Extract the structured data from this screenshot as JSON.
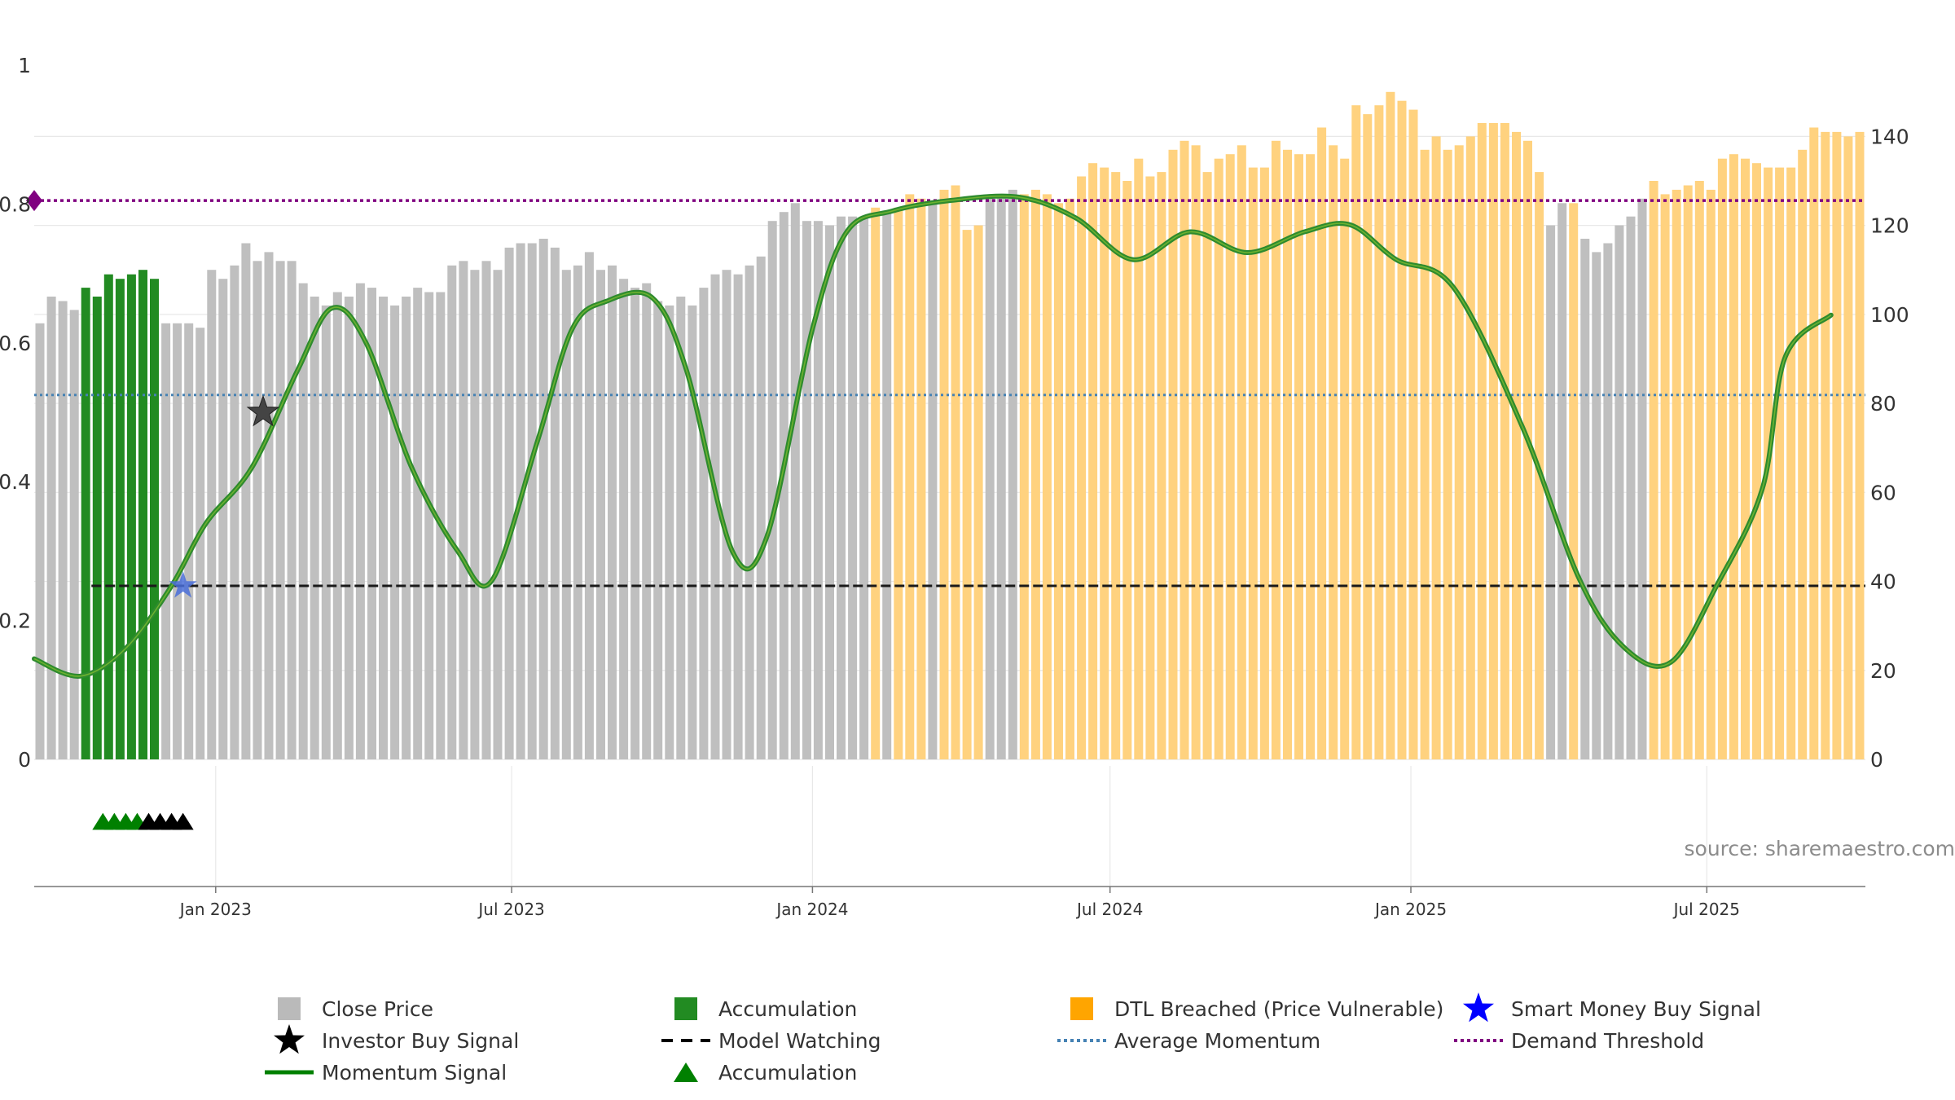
{
  "chart_data": {
    "type": "bar",
    "title": "",
    "source": "source: sharemaestro.com",
    "left_axis": {
      "min": 0,
      "max": 1,
      "ticks": [
        0,
        0.2,
        0.4,
        0.6,
        0.8,
        1
      ],
      "tick_labels": [
        "0",
        "0.2",
        "0.4",
        "0.6",
        "0.8",
        "1"
      ]
    },
    "right_axis": {
      "min": 0,
      "max": 156,
      "ticks": [
        0,
        20,
        40,
        60,
        80,
        100,
        120,
        140
      ],
      "tick_labels": [
        "0",
        "20",
        "40",
        "60",
        "80",
        "100",
        "120",
        "140"
      ]
    },
    "x_axis": {
      "start": "2022-09-12",
      "end": "2025-10-06",
      "ticks": [
        {
          "date": "2023-01-01",
          "label": "Jan 2023"
        },
        {
          "date": "2023-07-01",
          "label": "Jul 2023"
        },
        {
          "date": "2024-01-01",
          "label": "Jan 2024"
        },
        {
          "date": "2024-07-01",
          "label": "Jul 2024"
        },
        {
          "date": "2025-01-01",
          "label": "Jan 2025"
        },
        {
          "date": "2025-07-01",
          "label": "Jul 2025"
        }
      ]
    },
    "bars": {
      "start": "2022-09-12",
      "step_days": 7,
      "close": [
        98,
        104,
        103,
        101,
        106,
        104,
        109,
        108,
        109,
        110,
        108,
        98,
        98,
        98,
        97,
        110,
        108,
        111,
        116,
        112,
        114,
        112,
        112,
        107,
        104,
        102,
        105,
        104,
        107,
        106,
        104,
        102,
        104,
        106,
        105,
        105,
        111,
        112,
        110,
        112,
        110,
        115,
        116,
        116,
        117,
        115,
        110,
        111,
        114,
        110,
        111,
        108,
        106,
        107,
        103,
        102,
        104,
        102,
        106,
        109,
        110,
        109,
        111,
        113,
        121,
        123,
        125,
        121,
        121,
        120,
        122,
        122,
        122,
        124,
        123,
        124,
        127,
        126,
        125,
        128,
        129,
        119,
        120,
        126,
        127,
        128,
        127,
        128,
        127,
        125,
        126,
        131,
        134,
        133,
        132,
        130,
        135,
        131,
        132,
        137,
        139,
        138,
        132,
        135,
        136,
        138,
        133,
        133,
        139,
        137,
        136,
        136,
        142,
        138,
        135,
        147,
        145,
        147,
        150,
        148,
        146,
        137,
        140,
        137,
        138,
        140,
        143,
        143,
        143,
        141,
        139,
        132,
        120,
        125,
        125,
        117,
        114,
        116,
        120,
        122,
        126,
        130,
        127,
        128,
        129,
        130,
        128,
        135,
        136,
        135,
        134,
        133,
        133,
        133,
        137,
        142,
        141,
        141,
        140,
        141
      ],
      "state": [
        "g",
        "g",
        "g",
        "g",
        "a",
        "a",
        "a",
        "a",
        "a",
        "a",
        "a",
        "g",
        "g",
        "g",
        "g",
        "g",
        "g",
        "g",
        "g",
        "g",
        "g",
        "g",
        "g",
        "g",
        "g",
        "g",
        "g",
        "g",
        "g",
        "g",
        "g",
        "g",
        "g",
        "g",
        "g",
        "g",
        "g",
        "g",
        "g",
        "g",
        "g",
        "g",
        "g",
        "g",
        "g",
        "g",
        "g",
        "g",
        "g",
        "g",
        "g",
        "g",
        "g",
        "g",
        "g",
        "g",
        "g",
        "g",
        "g",
        "g",
        "g",
        "g",
        "g",
        "g",
        "g",
        "g",
        "g",
        "g",
        "g",
        "g",
        "g",
        "g",
        "g",
        "d",
        "g",
        "d",
        "d",
        "d",
        "g",
        "d",
        "d",
        "d",
        "d",
        "g",
        "g",
        "g",
        "d",
        "d",
        "d",
        "d",
        "d",
        "d",
        "d",
        "d",
        "d",
        "d",
        "d",
        "d",
        "d",
        "d",
        "d",
        "d",
        "d",
        "d",
        "d",
        "d",
        "d",
        "d",
        "d",
        "d",
        "d",
        "d",
        "d",
        "d",
        "d",
        "d",
        "d",
        "d",
        "d",
        "d",
        "d",
        "d",
        "d",
        "d",
        "d",
        "d",
        "d",
        "d",
        "d",
        "d",
        "d",
        "d",
        "g",
        "g",
        "d",
        "g",
        "g",
        "g",
        "g",
        "g",
        "g",
        "d",
        "d",
        "d",
        "d",
        "d",
        "d",
        "d",
        "d",
        "d",
        "d",
        "d",
        "d",
        "d",
        "d",
        "d",
        "d",
        "d",
        "d",
        "d"
      ]
    },
    "momentum": {
      "points": [
        [
          "2022-09-12",
          0.145
        ],
        [
          "2022-10-10",
          0.12
        ],
        [
          "2022-11-07",
          0.16
        ],
        [
          "2022-12-05",
          0.25
        ],
        [
          "2022-12-26",
          0.34
        ],
        [
          "2023-01-23",
          0.42
        ],
        [
          "2023-02-20",
          0.56
        ],
        [
          "2023-03-13",
          0.65
        ],
        [
          "2023-04-03",
          0.6
        ],
        [
          "2023-05-01",
          0.42
        ],
        [
          "2023-05-29",
          0.3
        ],
        [
          "2023-06-19",
          0.258
        ],
        [
          "2023-07-17",
          0.46
        ],
        [
          "2023-08-07",
          0.62
        ],
        [
          "2023-08-28",
          0.66
        ],
        [
          "2023-09-25",
          0.665
        ],
        [
          "2023-10-16",
          0.56
        ],
        [
          "2023-11-13",
          0.3
        ],
        [
          "2023-12-04",
          0.32
        ],
        [
          "2024-01-01",
          0.62
        ],
        [
          "2024-01-22",
          0.76
        ],
        [
          "2024-02-19",
          0.79
        ],
        [
          "2024-03-25",
          0.805
        ],
        [
          "2024-05-06",
          0.81
        ],
        [
          "2024-06-10",
          0.78
        ],
        [
          "2024-07-15",
          0.72
        ],
        [
          "2024-08-19",
          0.76
        ],
        [
          "2024-09-23",
          0.73
        ],
        [
          "2024-10-28",
          0.76
        ],
        [
          "2024-11-25",
          0.77
        ],
        [
          "2024-12-23",
          0.72
        ],
        [
          "2025-01-27",
          0.68
        ],
        [
          "2025-03-10",
          0.48
        ],
        [
          "2025-04-14",
          0.26
        ],
        [
          "2025-05-12",
          0.16
        ],
        [
          "2025-06-09",
          0.14
        ],
        [
          "2025-07-07",
          0.25
        ],
        [
          "2025-08-04",
          0.39
        ],
        [
          "2025-08-18",
          0.58
        ],
        [
          "2025-09-15",
          0.64
        ]
      ]
    },
    "average_momentum": 0.525,
    "model_watching_level": 0.25,
    "model_watching_start": "2022-10-17",
    "demand_threshold": 0.805,
    "investor_buy_signals": [
      {
        "date": "2023-01-30",
        "value": 0.5
      }
    ],
    "smart_money_buy_signals": [
      {
        "date": "2022-12-12",
        "value": 0.25
      }
    ],
    "accumulation_markers": [
      {
        "date": "2022-10-24",
        "color": "green"
      },
      {
        "date": "2022-10-31",
        "color": "green"
      },
      {
        "date": "2022-11-07",
        "color": "green"
      },
      {
        "date": "2022-11-14",
        "color": "green"
      },
      {
        "date": "2022-11-21",
        "color": "black"
      },
      {
        "date": "2022-11-28",
        "color": "black"
      },
      {
        "date": "2022-12-05",
        "color": "black"
      },
      {
        "date": "2022-12-12",
        "color": "black"
      }
    ],
    "legend": [
      {
        "label": "Close Price",
        "symbol": "square",
        "color": "#b3b3b3"
      },
      {
        "label": "Accumulation",
        "symbol": "square",
        "color": "#228b22"
      },
      {
        "label": "DTL Breached (Price Vulnerable)",
        "symbol": "square",
        "color": "#ffa500"
      },
      {
        "label": "Smart Money Buy Signal",
        "symbol": "star",
        "color": "#0000ff"
      },
      {
        "label": "Investor Buy Signal",
        "symbol": "star",
        "color": "#000000"
      },
      {
        "label": "Model Watching",
        "symbol": "dash",
        "color": "#000000"
      },
      {
        "label": "Average Momentum",
        "symbol": "dot",
        "color": "#4682b4"
      },
      {
        "label": "Demand Threshold",
        "symbol": "dot",
        "color": "#800080"
      },
      {
        "label": "Momentum Signal",
        "symbol": "line",
        "color": "#008000"
      },
      {
        "label": "Accumulation",
        "symbol": "triangle",
        "color": "#008000"
      }
    ],
    "colors": {
      "close": "#bfbfbf",
      "accumulation": "#228b22",
      "dtl": "#ffd27f",
      "momentum": "#2e8b2e",
      "momentum_highlight": "#9acd32",
      "average_momentum": "#4682b4",
      "demand_threshold": "#800080",
      "smart_money": "#0000ff",
      "investor": "#000000",
      "grid": "#e8e8e8"
    }
  }
}
